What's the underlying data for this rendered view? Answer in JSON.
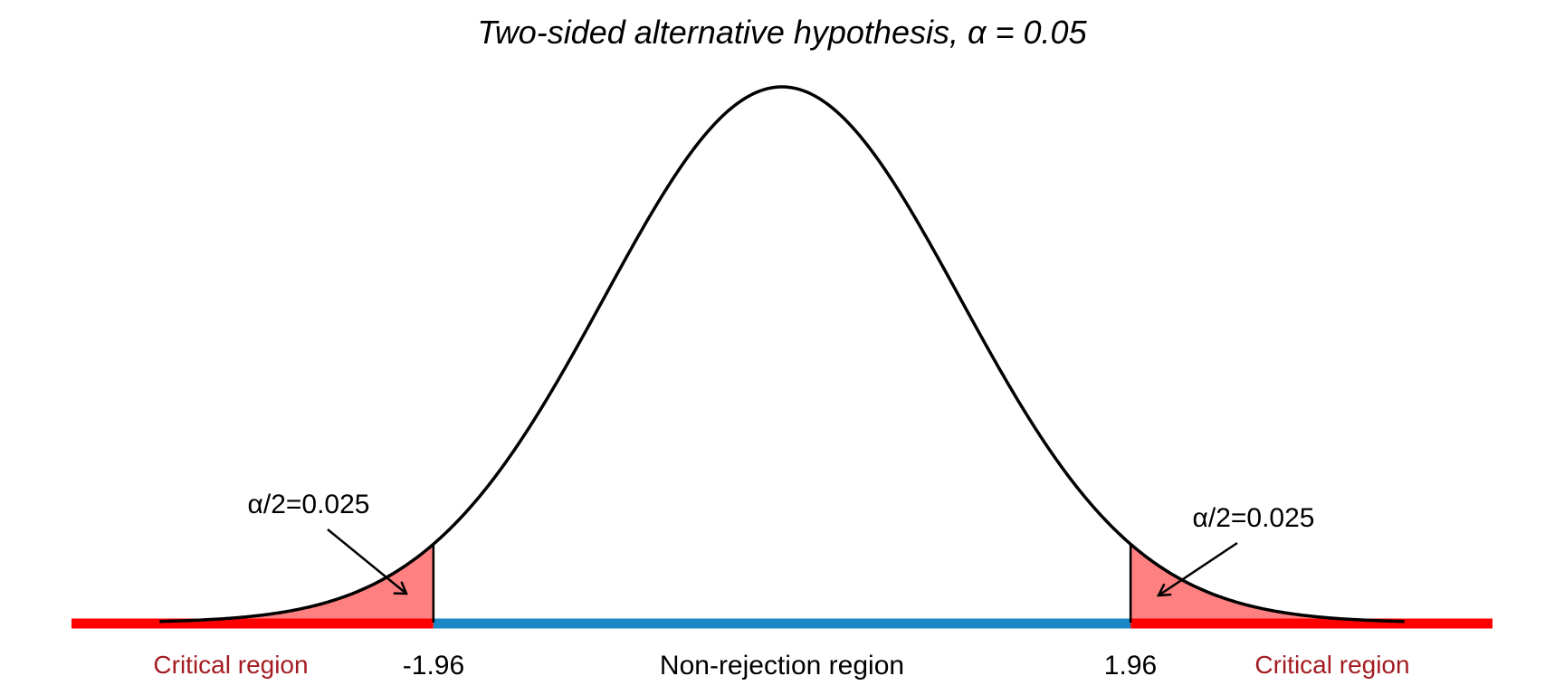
{
  "chart_data": {
    "type": "area",
    "title": "Two-sided alternative hypothesis, α = 0.05",
    "distribution": "standard normal density",
    "xlim": [
      -3.5,
      3.5
    ],
    "critical_values": {
      "lower": -1.96,
      "upper": 1.96,
      "lower_label": "-1.96",
      "upper_label": "1.96"
    },
    "tail_annotations": {
      "left": "α/2=0.025",
      "right": "α/2=0.025"
    },
    "regions": {
      "left": "Critical region",
      "middle": "Non-rejection region",
      "right": "Critical region"
    },
    "colors": {
      "curve": "#000000",
      "tail_fill": "#ff8080",
      "critical_axis": "#ff0000",
      "non_rejection_axis": "#1a88c6",
      "critical_text": "#a31c22"
    }
  }
}
